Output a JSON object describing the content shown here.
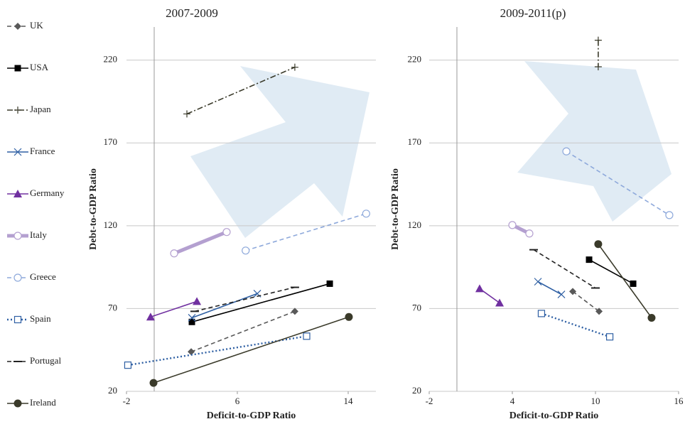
{
  "chart_data": [
    {
      "type": "line",
      "title": "2007-2009",
      "x_label": "Deficit-to-GDP Ratio",
      "y_label": "Debt-to-GDP Ratio",
      "xlim": [
        -2,
        16
      ],
      "xticks": [
        -2,
        6,
        14
      ],
      "ylim": [
        20,
        240
      ],
      "yticks": [
        20,
        70,
        120,
        170,
        220
      ],
      "grid": true,
      "series": [
        {
          "name": "UK",
          "color": "#595959",
          "dash": "dashed",
          "marker": "diamond",
          "x": [
            2.67,
            10.15
          ],
          "values": [
            43.9,
            68.3
          ]
        },
        {
          "name": "USA",
          "color": "#000000",
          "dash": "solid",
          "marker": "square",
          "x": [
            2.72,
            12.67
          ],
          "values": [
            61.9,
            85
          ]
        },
        {
          "name": "Japan",
          "color": "#3a3a2a",
          "dash": "dashdot",
          "marker": "plus",
          "x": [
            2.36,
            10.15
          ],
          "values": [
            187.5,
            215.7
          ]
        },
        {
          "name": "France",
          "color": "#2e5fa3",
          "dash": "solid",
          "marker": "cross",
          "x": [
            2.72,
            7.44
          ],
          "values": [
            64.4,
            79
          ]
        },
        {
          "name": "Germany",
          "color": "#7030a0",
          "dash": "solid",
          "marker": "triangle",
          "x": [
            -0.26,
            3.08
          ],
          "values": [
            64.9,
            74.3
          ]
        },
        {
          "name": "Italy",
          "color": "#b4a0d0",
          "dash": "thick",
          "marker": "circle-open",
          "x": [
            1.44,
            5.23
          ],
          "values": [
            103.3,
            116.2
          ]
        },
        {
          "name": "Greece",
          "color": "#8ea9db",
          "dash": "dashed",
          "marker": "circle-open",
          "x": [
            6.6,
            15.3
          ],
          "values": [
            105,
            127.3
          ]
        },
        {
          "name": "Spain",
          "color": "#2e5fa3",
          "dash": "dotted",
          "marker": "square-open",
          "x": [
            -1.9,
            11.0
          ],
          "values": [
            35.8,
            53.3
          ]
        },
        {
          "name": "Portugal",
          "color": "#222222",
          "dash": "dashed",
          "marker": "dash",
          "x": [
            2.92,
            10.15
          ],
          "values": [
            68.3,
            82.8
          ]
        },
        {
          "name": "Ireland",
          "color": "#3a3a2a",
          "dash": "solid",
          "marker": "circle",
          "x": [
            -0.05,
            14.05
          ],
          "values": [
            25.1,
            64.9
          ]
        }
      ]
    },
    {
      "type": "line",
      "title": "2009-2011(p)",
      "x_label": "Deficit-to-GDP Ratio",
      "y_label": "Debt-to-GDP Ratio",
      "xlim": [
        -2,
        16
      ],
      "xticks": [
        -2,
        4,
        10,
        16
      ],
      "ylim": [
        20,
        240
      ],
      "yticks": [
        20,
        70,
        120,
        170,
        220
      ],
      "grid": true,
      "series": [
        {
          "color": "#595959",
          "dash": "dashed",
          "marker": "diamond",
          "x": [
            8.36,
            10.26
          ],
          "values": [
            80.3,
            68.3
          ]
        },
        {
          "color": "#000000",
          "dash": "solid",
          "marker": "square",
          "x": [
            9.54,
            12.72
          ],
          "values": [
            99.5,
            85
          ]
        },
        {
          "color": "#3a3a2a",
          "dash": "dashdot",
          "marker": "plus",
          "x": [
            10.2,
            10.2
          ],
          "values": [
            232,
            216
          ]
        },
        {
          "color": "#2e5fa3",
          "dash": "solid",
          "marker": "cross",
          "x": [
            5.85,
            7.54
          ],
          "values": [
            86.2,
            78.5
          ]
        },
        {
          "color": "#7030a0",
          "dash": "solid",
          "marker": "triangle",
          "x": [
            1.64,
            3.08
          ],
          "values": [
            82,
            73.4
          ]
        },
        {
          "color": "#b4a0d0",
          "dash": "thick",
          "marker": "circle-open",
          "x": [
            4.0,
            5.23
          ],
          "values": [
            120.4,
            115.3
          ]
        },
        {
          "color": "#8ea9db",
          "dash": "dashed",
          "marker": "circle-open",
          "x": [
            7.9,
            15.33
          ],
          "values": [
            164.9,
            126.4
          ]
        },
        {
          "color": "#2e5fa3",
          "dash": "dotted",
          "marker": "square-open",
          "x": [
            6.1,
            11.03
          ],
          "values": [
            67,
            52.9
          ]
        },
        {
          "color": "#222222",
          "dash": "dashed",
          "marker": "dash",
          "x": [
            5.54,
            10.0
          ],
          "values": [
            105.5,
            82.4
          ]
        },
        {
          "color": "#3a3a2a",
          "dash": "solid",
          "marker": "circle",
          "x": [
            10.2,
            14.05
          ],
          "values": [
            108.9,
            64.4
          ]
        }
      ]
    }
  ]
}
